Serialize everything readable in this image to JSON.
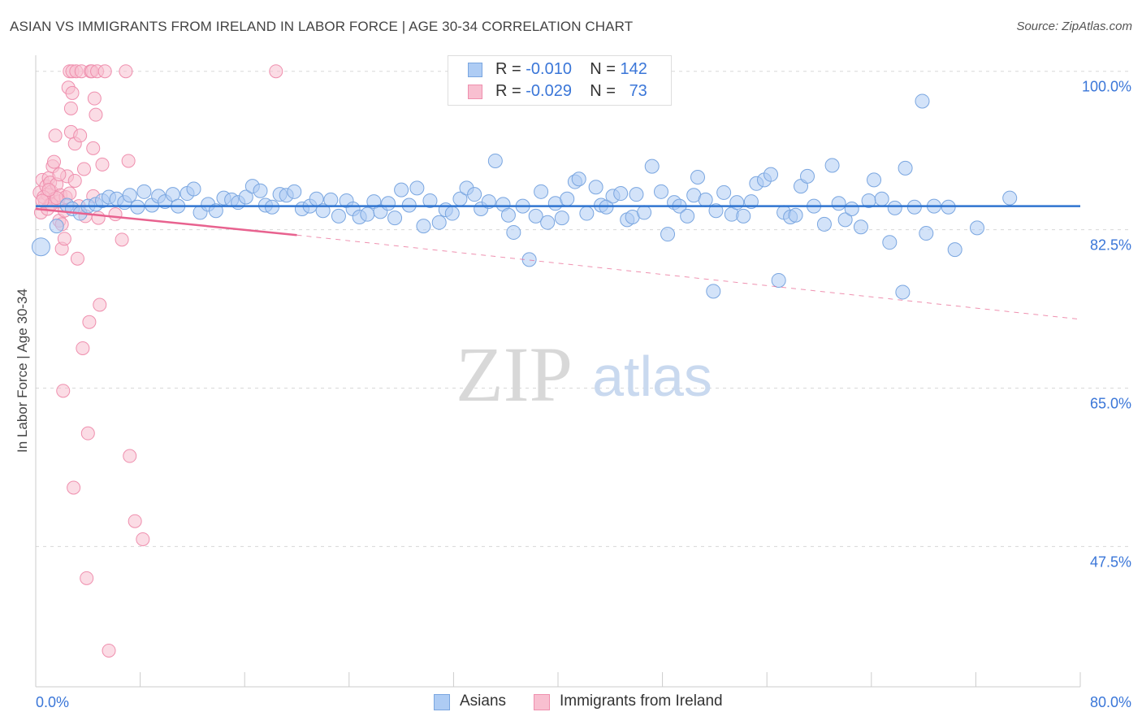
{
  "title": "ASIAN VS IMMIGRANTS FROM IRELAND IN LABOR FORCE | AGE 30-34 CORRELATION CHART",
  "source": "Source: ZipAtlas.com",
  "watermark": {
    "zip": "ZIP",
    "atlas": "atlas"
  },
  "legend_top": {
    "asians": {
      "r_label": "R =",
      "r_value": "-0.010",
      "n_label": "N =",
      "n_value": "142"
    },
    "ireland": {
      "r_label": "R =",
      "r_value": "-0.029",
      "n_label": "N =",
      "n_value": "73"
    }
  },
  "legend_bottom": {
    "asians": "Asians",
    "ireland": "Immigrants from Ireland"
  },
  "colors": {
    "asian_fill": "#aeccf4",
    "asian_stroke": "#7aa6e0",
    "asian_line": "#2f74d0",
    "ireland_fill": "#f8bfd0",
    "ireland_stroke": "#ef8fae",
    "ireland_line": "#e8628f",
    "axis_text": "#3a76d8",
    "grid": "#d8d8d8"
  },
  "chart_data": {
    "type": "scatter",
    "title": "ASIAN VS IMMIGRANTS FROM IRELAND IN LABOR FORCE | AGE 30-34 CORRELATION CHART",
    "xlabel": "",
    "ylabel": "In Labor Force | Age 30-34",
    "xlim": [
      0,
      80
    ],
    "ylim": [
      32,
      101.5
    ],
    "x_tick_labels": [
      {
        "value": 0,
        "label": "0.0%"
      },
      {
        "value": 80,
        "label": "80.0%"
      }
    ],
    "y_tick_labels": [
      {
        "value": 100,
        "label": "100.0%"
      },
      {
        "value": 82.5,
        "label": "82.5%"
      },
      {
        "value": 65,
        "label": "65.0%"
      },
      {
        "value": 47.5,
        "label": "47.5%"
      }
    ],
    "series": [
      {
        "name": "Asians",
        "r": -0.01,
        "n": 142,
        "trend": {
          "x0": 0,
          "y0": 85.1,
          "x1": 80,
          "y1": 85.1
        },
        "points": [
          [
            0.4,
            80.6
          ],
          [
            1.6,
            82.9
          ],
          [
            2.4,
            85.2
          ],
          [
            2.8,
            84.8
          ],
          [
            3.4,
            84.3
          ],
          [
            4.0,
            85.1
          ],
          [
            4.6,
            85.3
          ],
          [
            5.1,
            85.7
          ],
          [
            5.6,
            86.1
          ],
          [
            6.2,
            85.9
          ],
          [
            6.8,
            85.5
          ],
          [
            7.2,
            86.3
          ],
          [
            7.8,
            85.0
          ],
          [
            8.3,
            86.7
          ],
          [
            8.9,
            85.2
          ],
          [
            9.4,
            86.2
          ],
          [
            9.9,
            85.6
          ],
          [
            10.5,
            86.4
          ],
          [
            10.9,
            85.1
          ],
          [
            11.6,
            86.5
          ],
          [
            12.1,
            87.0
          ],
          [
            12.6,
            84.4
          ],
          [
            13.2,
            85.3
          ],
          [
            13.8,
            84.6
          ],
          [
            14.4,
            86.0
          ],
          [
            15.0,
            85.8
          ],
          [
            15.5,
            85.5
          ],
          [
            16.1,
            86.1
          ],
          [
            16.6,
            87.3
          ],
          [
            17.2,
            86.8
          ],
          [
            17.6,
            85.2
          ],
          [
            18.1,
            85.0
          ],
          [
            18.7,
            86.4
          ],
          [
            19.2,
            86.3
          ],
          [
            19.8,
            86.7
          ],
          [
            20.4,
            84.8
          ],
          [
            21.0,
            85.1
          ],
          [
            21.5,
            85.9
          ],
          [
            22.0,
            84.6
          ],
          [
            22.6,
            85.8
          ],
          [
            23.2,
            84.0
          ],
          [
            23.8,
            85.7
          ],
          [
            24.3,
            84.8
          ],
          [
            24.8,
            83.9
          ],
          [
            25.4,
            84.2
          ],
          [
            25.9,
            85.6
          ],
          [
            26.4,
            84.5
          ],
          [
            27.0,
            85.4
          ],
          [
            27.5,
            83.8
          ],
          [
            28.0,
            86.9
          ],
          [
            28.6,
            85.2
          ],
          [
            29.2,
            87.1
          ],
          [
            29.7,
            82.9
          ],
          [
            30.2,
            85.7
          ],
          [
            30.9,
            83.3
          ],
          [
            31.4,
            84.7
          ],
          [
            31.9,
            84.3
          ],
          [
            32.5,
            85.9
          ],
          [
            33.0,
            87.1
          ],
          [
            33.6,
            86.4
          ],
          [
            34.1,
            84.8
          ],
          [
            34.7,
            85.6
          ],
          [
            35.2,
            90.1
          ],
          [
            35.8,
            85.3
          ],
          [
            36.2,
            84.1
          ],
          [
            36.6,
            82.2
          ],
          [
            37.3,
            85.1
          ],
          [
            37.8,
            79.2
          ],
          [
            38.3,
            84.0
          ],
          [
            38.7,
            86.7
          ],
          [
            39.2,
            83.3
          ],
          [
            39.8,
            85.4
          ],
          [
            40.3,
            83.8
          ],
          [
            40.7,
            85.9
          ],
          [
            41.3,
            87.8
          ],
          [
            41.6,
            88.1
          ],
          [
            42.2,
            84.3
          ],
          [
            42.9,
            87.2
          ],
          [
            43.3,
            85.2
          ],
          [
            43.7,
            85.0
          ],
          [
            44.2,
            86.2
          ],
          [
            44.8,
            86.5
          ],
          [
            45.3,
            83.6
          ],
          [
            45.7,
            83.9
          ],
          [
            46.0,
            86.4
          ],
          [
            46.6,
            84.4
          ],
          [
            47.2,
            89.5
          ],
          [
            47.9,
            86.7
          ],
          [
            48.4,
            82.0
          ],
          [
            48.9,
            85.5
          ],
          [
            49.3,
            85.1
          ],
          [
            49.9,
            84.0
          ],
          [
            50.4,
            86.3
          ],
          [
            50.7,
            88.3
          ],
          [
            51.3,
            85.8
          ],
          [
            51.9,
            75.7
          ],
          [
            52.1,
            84.6
          ],
          [
            52.7,
            86.6
          ],
          [
            53.3,
            84.2
          ],
          [
            53.7,
            85.5
          ],
          [
            54.2,
            84.0
          ],
          [
            54.8,
            85.6
          ],
          [
            55.2,
            87.6
          ],
          [
            55.8,
            88.0
          ],
          [
            56.3,
            88.6
          ],
          [
            56.9,
            76.9
          ],
          [
            57.3,
            84.4
          ],
          [
            57.8,
            83.9
          ],
          [
            58.2,
            84.1
          ],
          [
            58.6,
            87.3
          ],
          [
            59.1,
            88.4
          ],
          [
            59.6,
            85.1
          ],
          [
            60.4,
            83.1
          ],
          [
            61.0,
            89.6
          ],
          [
            61.5,
            85.4
          ],
          [
            62.0,
            83.6
          ],
          [
            62.5,
            84.8
          ],
          [
            63.2,
            82.8
          ],
          [
            63.8,
            85.7
          ],
          [
            64.2,
            88.0
          ],
          [
            64.8,
            85.9
          ],
          [
            65.4,
            81.1
          ],
          [
            65.8,
            84.9
          ],
          [
            66.4,
            75.6
          ],
          [
            66.6,
            89.3
          ],
          [
            67.3,
            85.0
          ],
          [
            67.9,
            96.7
          ],
          [
            68.2,
            82.1
          ],
          [
            68.8,
            85.1
          ],
          [
            70.4,
            80.3
          ],
          [
            72.1,
            82.7
          ],
          [
            74.6,
            86.0
          ],
          [
            69.9,
            85.0
          ]
        ]
      },
      {
        "name": "Immigrants from Ireland",
        "r": -0.029,
        "n": 73,
        "trend": {
          "x0": 0,
          "y0": 84.8,
          "x1": 20,
          "y1": 81.9
        },
        "trend_dashed": {
          "x0": 20,
          "y0": 81.9,
          "x1": 80,
          "y1": 72.6
        },
        "points": [
          [
            0.3,
            86.6
          ],
          [
            0.4,
            84.4
          ],
          [
            0.5,
            88.0
          ],
          [
            0.7,
            85.6
          ],
          [
            0.8,
            87.3
          ],
          [
            0.9,
            86.4
          ],
          [
            1.0,
            88.2
          ],
          [
            1.1,
            85.3
          ],
          [
            1.1,
            87.7
          ],
          [
            1.2,
            86.7
          ],
          [
            1.3,
            89.5
          ],
          [
            1.4,
            85.9
          ],
          [
            1.4,
            90.0
          ],
          [
            1.5,
            92.9
          ],
          [
            1.6,
            87.5
          ],
          [
            1.7,
            85.6
          ],
          [
            1.8,
            83.5
          ],
          [
            1.9,
            86.3
          ],
          [
            2.0,
            83.1
          ],
          [
            2.0,
            80.4
          ],
          [
            2.1,
            64.7
          ],
          [
            2.2,
            81.5
          ],
          [
            2.3,
            86.1
          ],
          [
            2.4,
            88.4
          ],
          [
            2.5,
            98.2
          ],
          [
            2.6,
            100.0
          ],
          [
            2.7,
            95.9
          ],
          [
            2.7,
            93.3
          ],
          [
            2.8,
            100.0
          ],
          [
            2.9,
            54.0
          ],
          [
            2.8,
            97.6
          ],
          [
            3.0,
            92.0
          ],
          [
            3.1,
            100.0
          ],
          [
            3.2,
            79.3
          ],
          [
            3.3,
            85.1
          ],
          [
            3.4,
            92.9
          ],
          [
            3.5,
            100.0
          ],
          [
            3.6,
            69.4
          ],
          [
            3.7,
            89.2
          ],
          [
            3.8,
            84.0
          ],
          [
            3.9,
            44.0
          ],
          [
            4.0,
            60.0
          ],
          [
            4.1,
            72.3
          ],
          [
            4.2,
            100.0
          ],
          [
            4.3,
            100.0
          ],
          [
            4.4,
            91.5
          ],
          [
            4.5,
            97.0
          ],
          [
            4.6,
            95.2
          ],
          [
            4.7,
            100.0
          ],
          [
            4.8,
            83.8
          ],
          [
            4.9,
            74.2
          ],
          [
            5.1,
            89.7
          ],
          [
            5.3,
            100.0
          ],
          [
            5.6,
            36.0
          ],
          [
            6.1,
            84.2
          ],
          [
            6.6,
            81.4
          ],
          [
            6.9,
            100.0
          ],
          [
            7.1,
            90.1
          ],
          [
            7.2,
            57.5
          ],
          [
            7.6,
            50.3
          ],
          [
            8.2,
            48.3
          ],
          [
            18.4,
            100.0
          ],
          [
            0.6,
            86.1
          ],
          [
            0.9,
            84.8
          ],
          [
            1.2,
            85.3
          ],
          [
            1.6,
            86.0
          ],
          [
            2.2,
            84.6
          ],
          [
            2.6,
            86.5
          ],
          [
            3.0,
            87.9
          ],
          [
            0.5,
            85.7
          ],
          [
            1.0,
            86.9
          ],
          [
            1.8,
            88.6
          ],
          [
            4.4,
            86.2
          ]
        ]
      }
    ]
  }
}
